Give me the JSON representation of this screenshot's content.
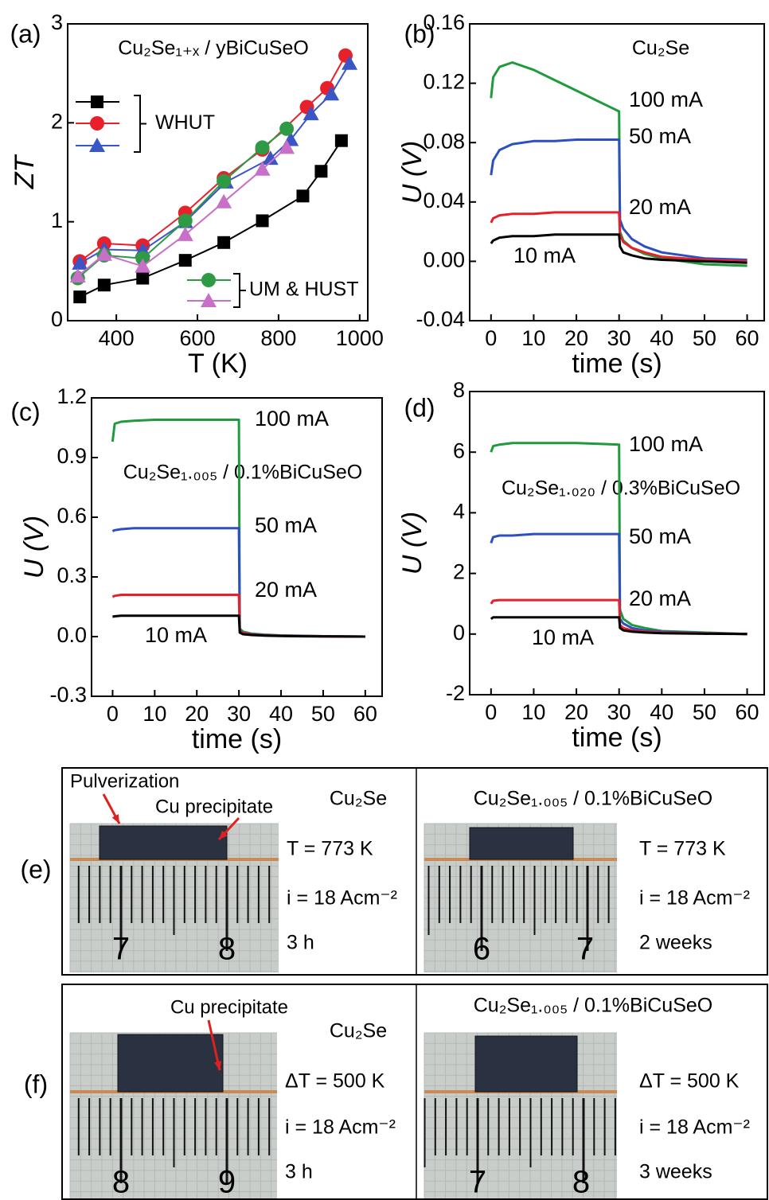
{
  "chart_data": [
    {
      "type": "line",
      "panel_label": "(a)",
      "annotation": "Cu₂Se₁₊ₓ / yBiCuSeO",
      "x_label": "T (K)",
      "y_label": "ZT",
      "xlim": [
        280,
        1020
      ],
      "ylim": [
        0,
        3
      ],
      "xticks": [
        400,
        600,
        800,
        1000
      ],
      "yticks": [
        0,
        1,
        2,
        3
      ],
      "legend_groups": [
        "WHUT",
        "UM & HUST"
      ],
      "series": [
        {
          "color": "#000000",
          "marker": "square",
          "x": [
            310,
            370,
            465,
            570,
            665,
            760,
            860,
            905,
            955
          ],
          "values": [
            0.24,
            0.36,
            0.43,
            0.61,
            0.79,
            1.01,
            1.26,
            1.51,
            1.82
          ]
        },
        {
          "color": "#e8202a",
          "marker": "circle",
          "x": [
            310,
            370,
            465,
            570,
            665,
            760,
            870,
            920,
            965
          ],
          "values": [
            0.6,
            0.78,
            0.76,
            1.09,
            1.44,
            1.73,
            2.16,
            2.35,
            2.68
          ]
        },
        {
          "color": "#3a55c6",
          "marker": "triangle",
          "x": [
            310,
            370,
            465,
            570,
            670,
            780,
            830,
            880,
            930,
            975
          ],
          "values": [
            0.58,
            0.72,
            0.71,
            1.0,
            1.4,
            1.64,
            1.83,
            2.09,
            2.29,
            2.6
          ]
        },
        {
          "color": "#2f9a46",
          "marker": "circle",
          "x": [
            305,
            370,
            465,
            570,
            665,
            760,
            820
          ],
          "values": [
            0.43,
            0.66,
            0.63,
            1.01,
            1.41,
            1.75,
            1.94
          ]
        },
        {
          "color": "#c86fc8",
          "marker": "triangle",
          "x": [
            305,
            370,
            465,
            570,
            665,
            760,
            820
          ],
          "values": [
            0.45,
            0.67,
            0.55,
            0.87,
            1.2,
            1.53,
            1.75
          ]
        }
      ]
    },
    {
      "type": "line",
      "panel_label": "(b)",
      "annotation": "Cu₂Se",
      "x_label": "time (s)",
      "y_label": "U (V)",
      "xlim": [
        -5,
        64
      ],
      "ylim": [
        -0.04,
        0.16
      ],
      "xticks": [
        0,
        10,
        20,
        30,
        40,
        50,
        60
      ],
      "yticks": [
        -0.04,
        {
          "value": 0,
          "label": "0.00"
        },
        0.04,
        0.08,
        0.12,
        0.16
      ],
      "x": [
        0,
        0.5,
        2,
        5,
        10,
        15,
        20,
        25,
        30,
        30.2,
        31,
        33,
        36,
        40,
        50,
        60
      ],
      "series": [
        {
          "name": "100 mA",
          "color": "#1f9a3c",
          "values": [
            0.11,
            0.124,
            0.131,
            0.134,
            0.129,
            0.122,
            0.115,
            0.108,
            0.101,
            0.02,
            0.014,
            0.009,
            0.005,
            0.002,
            -0.002,
            -0.003
          ]
        },
        {
          "name": "50 mA",
          "color": "#2d4fc0",
          "values": [
            0.058,
            0.068,
            0.075,
            0.079,
            0.081,
            0.081,
            0.082,
            0.082,
            0.082,
            0.028,
            0.022,
            0.015,
            0.01,
            0.006,
            0.002,
            0.001
          ]
        },
        {
          "name": "20 mA",
          "color": "#e8202a",
          "values": [
            0.026,
            0.029,
            0.031,
            0.032,
            0.032,
            0.033,
            0.033,
            0.033,
            0.033,
            0.018,
            0.013,
            0.009,
            0.006,
            0.003,
            0.001,
            0
          ]
        },
        {
          "name": "10 mA",
          "color": "#000000",
          "values": [
            0.012,
            0.014,
            0.016,
            0.017,
            0.017,
            0.018,
            0.018,
            0.018,
            0.018,
            0.01,
            0.006,
            0.004,
            0.002,
            0.001,
            0,
            -0.001
          ]
        }
      ]
    },
    {
      "type": "line",
      "panel_label": "(c)",
      "annotation": "Cu₂Se₁.₀₀₅ / 0.1%BiCuSeO",
      "x_label": "time (s)",
      "y_label": "U (V)",
      "xlim": [
        -5,
        64
      ],
      "ylim": [
        -0.3,
        1.2
      ],
      "xticks": [
        0,
        10,
        20,
        30,
        40,
        50,
        60
      ],
      "yticks": [
        -0.3,
        {
          "value": 0,
          "label": "0.0"
        },
        0.3,
        0.6,
        0.9,
        1.2
      ],
      "x": [
        0,
        0.5,
        2,
        5,
        10,
        20,
        30,
        30.2,
        31,
        33,
        36,
        40,
        50,
        60
      ],
      "series": [
        {
          "name": "100 mA",
          "color": "#1f9a3c",
          "values": [
            0.98,
            1.07,
            1.08,
            1.085,
            1.09,
            1.09,
            1.09,
            0.04,
            0.025,
            0.015,
            0.01,
            0.006,
            0.002,
            0
          ]
        },
        {
          "name": "50 mA",
          "color": "#2d4fc0",
          "values": [
            0.53,
            0.535,
            0.54,
            0.545,
            0.545,
            0.545,
            0.545,
            0.03,
            0.02,
            0.012,
            0.008,
            0.005,
            0.002,
            0
          ]
        },
        {
          "name": "20 mA",
          "color": "#e8202a",
          "values": [
            0.2,
            0.205,
            0.21,
            0.21,
            0.21,
            0.21,
            0.21,
            0.025,
            0.018,
            0.01,
            0.006,
            0.004,
            0.001,
            0
          ]
        },
        {
          "name": "10 mA",
          "color": "#000000",
          "values": [
            0.1,
            0.102,
            0.105,
            0.105,
            0.105,
            0.105,
            0.105,
            0.02,
            0.012,
            0.008,
            0.005,
            0.003,
            0.001,
            0
          ]
        }
      ]
    },
    {
      "type": "line",
      "panel_label": "(d)",
      "annotation": "Cu₂Se₁.₀₂₀ / 0.3%BiCuSeO",
      "x_label": "time (s)",
      "y_label": "U (V)",
      "xlim": [
        -5,
        64
      ],
      "ylim": [
        -2,
        8
      ],
      "xticks": [
        0,
        10,
        20,
        30,
        40,
        50,
        60
      ],
      "yticks": [
        -2,
        0,
        2,
        4,
        6,
        8
      ],
      "x": [
        0,
        0.5,
        2,
        5,
        10,
        20,
        30,
        30.2,
        31,
        33,
        36,
        40,
        50,
        60
      ],
      "series": [
        {
          "name": "100 mA",
          "color": "#1f9a3c",
          "values": [
            6.0,
            6.2,
            6.25,
            6.3,
            6.3,
            6.3,
            6.25,
            0.8,
            0.5,
            0.3,
            0.2,
            0.1,
            0.05,
            0
          ]
        },
        {
          "name": "50 mA",
          "color": "#2d4fc0",
          "values": [
            3.0,
            3.2,
            3.25,
            3.25,
            3.3,
            3.3,
            3.3,
            0.5,
            0.35,
            0.2,
            0.12,
            0.08,
            0.03,
            0
          ]
        },
        {
          "name": "20 mA",
          "color": "#e8202a",
          "values": [
            1.0,
            1.1,
            1.12,
            1.12,
            1.12,
            1.12,
            1.12,
            0.3,
            0.2,
            0.12,
            0.08,
            0.05,
            0.02,
            0
          ]
        },
        {
          "name": "10 mA",
          "color": "#000000",
          "values": [
            0.5,
            0.55,
            0.55,
            0.55,
            0.55,
            0.55,
            0.55,
            0.2,
            0.12,
            0.08,
            0.05,
            0.03,
            0.01,
            0
          ]
        }
      ]
    }
  ],
  "photo_panels": [
    {
      "label": "(e)",
      "sides": [
        {
          "caption": "Cu₂Se",
          "lines": [
            "T = 773 K",
            "i = 18 Acm⁻²",
            "3 h"
          ],
          "ruler": [
            "7",
            "8"
          ],
          "notes": [
            "Pulverization",
            "Cu precipitate"
          ]
        },
        {
          "caption": "Cu₂Se₁.₀₀₅ / 0.1%BiCuSeO",
          "lines": [
            "T = 773 K",
            "i = 18 Acm⁻²",
            "2 weeks"
          ],
          "ruler": [
            "6",
            "7"
          ]
        }
      ]
    },
    {
      "label": "(f)",
      "sides": [
        {
          "caption": "Cu₂Se",
          "lines": [
            "ΔT = 500 K",
            "i = 18 Acm⁻²",
            "3 h"
          ],
          "ruler": [
            "8",
            "9"
          ],
          "notes": [
            "Cu precipitate"
          ]
        },
        {
          "caption": "Cu₂Se₁.₀₀₅ / 0.1%BiCuSeO",
          "lines": [
            "ΔT = 500 K",
            "i = 18 Acm⁻²",
            "3 weeks"
          ],
          "ruler": [
            "7",
            "8"
          ]
        }
      ]
    }
  ]
}
